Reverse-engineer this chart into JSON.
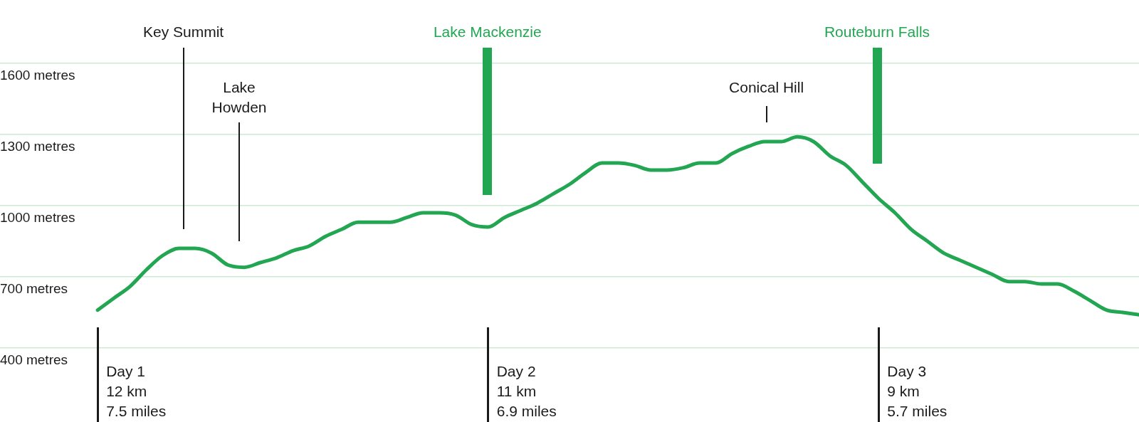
{
  "chart_data": {
    "type": "line",
    "categories": [
      null,
      null,
      null,
      null,
      null,
      null,
      null,
      null,
      null,
      null,
      null,
      null,
      null,
      null,
      null,
      null,
      null,
      null,
      null,
      null,
      null,
      null,
      null,
      null,
      null,
      null,
      null,
      null,
      null,
      null,
      null,
      null,
      null,
      null,
      null,
      null,
      null,
      null,
      null,
      null,
      null,
      null,
      null,
      null,
      null,
      null,
      null,
      null,
      null,
      null,
      null,
      null,
      null,
      null,
      null,
      null,
      null,
      null,
      null,
      null,
      null,
      null,
      null,
      null,
      null,
      null,
      null,
      null,
      null,
      null,
      null
    ],
    "series": [
      {
        "color": "#22a652",
        "values": [
          null,
          null,
          null,
          null,
          null,
          null,
          560,
          610,
          660,
          730,
          790,
          820,
          820,
          800,
          750,
          740,
          760,
          780,
          810,
          830,
          870,
          900,
          930,
          930,
          930,
          950,
          970,
          970,
          960,
          920,
          910,
          950,
          980,
          1010,
          1050,
          1090,
          1140,
          1180,
          1180,
          1170,
          1150,
          1150,
          1160,
          1180,
          1180,
          1220,
          1250,
          1270,
          1270,
          1290,
          1270,
          1210,
          1170,
          1100,
          1030,
          970,
          900,
          850,
          800,
          770,
          740,
          710,
          680,
          680,
          670,
          670,
          640,
          600,
          560,
          550,
          540
        ]
      }
    ],
    "ylim": [
      400,
      1600
    ],
    "yticks": [
      {
        "value": 400,
        "label": "400 metres"
      },
      {
        "value": 700,
        "label": "700 metres"
      },
      {
        "value": 1000,
        "label": "1000 metres"
      },
      {
        "value": 1300,
        "label": "1300 metres"
      },
      {
        "value": 1600,
        "label": "1600 metres"
      }
    ],
    "grid": "y",
    "marker": "none",
    "annotations": [
      "Key Summit",
      "Lake Howden",
      "Lake Mackenzie",
      "Conical Hill",
      "Routeburn Falls",
      "Day 1\n12 km\n7.5 miles",
      "Day 2\n11 km\n6.9 miles",
      "Day 3\n9 km\n5.7 miles"
    ]
  }
}
